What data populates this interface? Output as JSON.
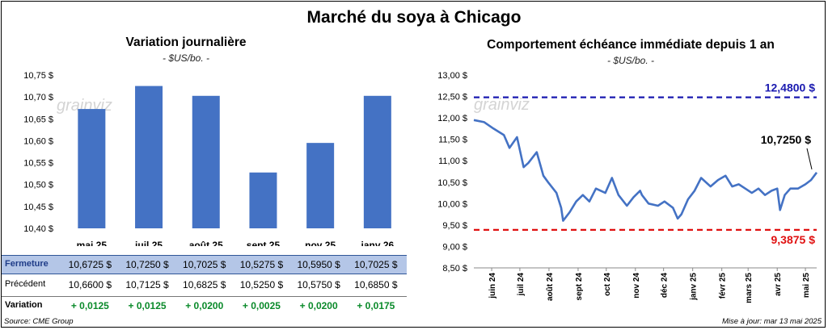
{
  "title": "Marché du soya à Chicago",
  "left": {
    "title": "Variation journalière",
    "units": "- $US/bo. -"
  },
  "right": {
    "title": "Comportement échéance immédiate depuis 1 an",
    "units": "- $US/bo. -"
  },
  "watermark": "grainviz",
  "table": {
    "row1_label": "Fermeture",
    "row2_label": "Précédent",
    "row3_label": "Variation",
    "fermeture": [
      "10,6725  $",
      "10,7250  $",
      "10,7025  $",
      "10,5275  $",
      "10,5950  $",
      "10,7025  $"
    ],
    "precedent": [
      "10,6600  $",
      "10,7125  $",
      "10,6825  $",
      "10,5250  $",
      "10,5750  $",
      "10,6850  $"
    ],
    "variation": [
      "+ 0,0125",
      "+ 0,0125",
      "+ 0,0200",
      "+ 0,0025",
      "+ 0,0200",
      "+ 0,0175"
    ]
  },
  "source": "Source: CME Group",
  "updated": "Mise à jour: mar 13 mai 2025",
  "chart_data": [
    {
      "type": "bar",
      "title": "Variation journalière",
      "categories": [
        "mai 25",
        "juil 25",
        "août 25",
        "sept 25",
        "nov 25",
        "janv 26"
      ],
      "values": [
        10.6725,
        10.725,
        10.7025,
        10.5275,
        10.595,
        10.7025
      ],
      "ylim": [
        10.4,
        10.75
      ],
      "yticks": [
        "10,40 $",
        "10,45 $",
        "10,50 $",
        "10,55 $",
        "10,60 $",
        "10,65 $",
        "10,70 $",
        "10,75 $"
      ],
      "grid": false,
      "color": "#4472c4"
    },
    {
      "type": "line",
      "title": "Comportement échéance immédiate depuis 1 an",
      "ylim": [
        8.5,
        13.0
      ],
      "yticks": [
        "8,50 $",
        "9,00 $",
        "9,50 $",
        "10,00 $",
        "10,50 $",
        "11,00 $",
        "11,50 $",
        "12,00 $",
        "12,50 $",
        "13,00 $"
      ],
      "xticks": [
        "juin 24",
        "juil 24",
        "août 24",
        "sept 24",
        "oct 24",
        "nov 24",
        "déc 24",
        "janv 25",
        "févr 25",
        "mars 25",
        "avr 25",
        "mai 25"
      ],
      "x": [
        "2024-05-13",
        "2024-05-24",
        "2024-06-03",
        "2024-06-14",
        "2024-06-20",
        "2024-06-28",
        "2024-07-05",
        "2024-07-10",
        "2024-07-19",
        "2024-07-26",
        "2024-07-31",
        "2024-08-09",
        "2024-08-14",
        "2024-08-16",
        "2024-08-23",
        "2024-08-30",
        "2024-09-06",
        "2024-09-13",
        "2024-09-20",
        "2024-09-30",
        "2024-10-07",
        "2024-10-14",
        "2024-10-23",
        "2024-10-30",
        "2024-11-06",
        "2024-11-08",
        "2024-11-15",
        "2024-11-25",
        "2024-12-02",
        "2024-12-11",
        "2024-12-16",
        "2024-12-20",
        "2024-12-27",
        "2025-01-03",
        "2025-01-10",
        "2025-01-20",
        "2025-01-28",
        "2025-02-05",
        "2025-02-12",
        "2025-02-19",
        "2025-02-26",
        "2025-03-05",
        "2025-03-12",
        "2025-03-19",
        "2025-03-26",
        "2025-04-01",
        "2025-04-04",
        "2025-04-09",
        "2025-04-15",
        "2025-04-23",
        "2025-05-01",
        "2025-05-07",
        "2025-05-13"
      ],
      "y": [
        11.95,
        11.9,
        11.75,
        11.6,
        11.3,
        11.55,
        10.85,
        10.95,
        11.2,
        10.65,
        10.5,
        10.25,
        9.9,
        9.6,
        9.8,
        10.05,
        10.2,
        10.05,
        10.35,
        10.25,
        10.6,
        10.2,
        9.95,
        10.15,
        10.3,
        10.2,
        10.0,
        9.95,
        10.05,
        9.9,
        9.65,
        9.75,
        10.1,
        10.3,
        10.6,
        10.4,
        10.55,
        10.65,
        10.4,
        10.45,
        10.35,
        10.25,
        10.35,
        10.2,
        10.3,
        10.35,
        9.85,
        10.2,
        10.35,
        10.35,
        10.45,
        10.55,
        10.725
      ],
      "last_label": "10,7250 $",
      "reference_lines": [
        {
          "label": "12,4800 $",
          "value": 12.48,
          "color": "#1a1ab0"
        },
        {
          "label": "9,3875 $",
          "value": 9.3875,
          "color": "#e01010"
        }
      ],
      "series_color": "#4472c4",
      "grid": false
    }
  ]
}
